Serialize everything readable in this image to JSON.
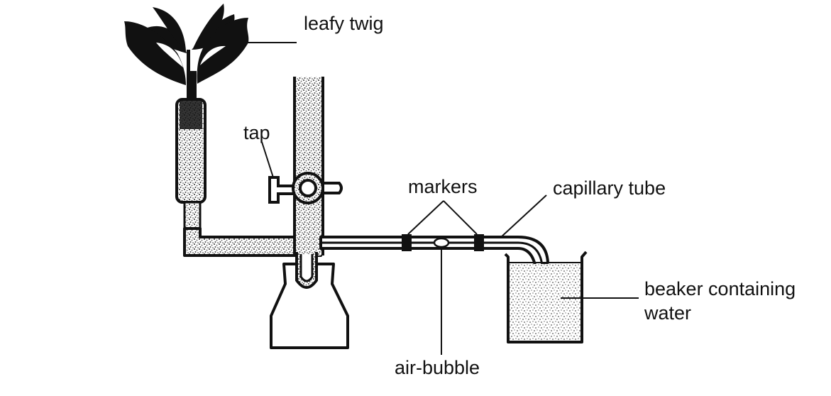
{
  "labels": {
    "leafy_twig": "leafy twig",
    "tap": "tap",
    "markers": "markers",
    "capillary_tube": "capillary tube",
    "beaker_line1": "beaker containing",
    "beaker_line2": "water",
    "air_bubble": "air-bubble"
  }
}
